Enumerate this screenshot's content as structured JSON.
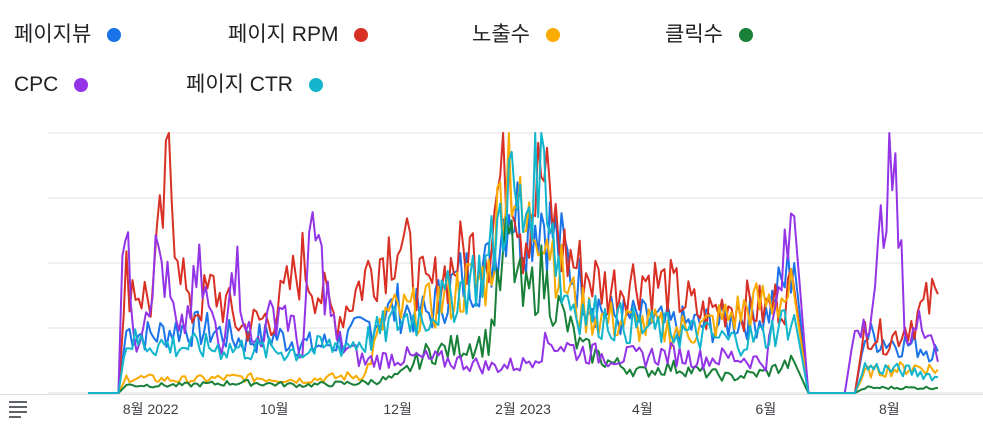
{
  "legend": [
    {
      "label": "페이지뷰",
      "color": "#1a73e8"
    },
    {
      "label": "페이지 RPM",
      "color": "#d93025"
    },
    {
      "label": "노출수",
      "color": "#f9ab00"
    },
    {
      "label": "클릭수",
      "color": "#188038"
    },
    {
      "label": "CPC",
      "color": "#9334e6"
    },
    {
      "label": "페이지 CTR",
      "color": "#12b5cb"
    }
  ],
  "toolbar": {
    "menu_icon": "menu-lines-icon"
  },
  "chart_data": {
    "type": "line",
    "title": "",
    "xlabel": "",
    "ylabel": "",
    "grid": true,
    "legend_position": "top",
    "x_range": [
      "2022-07-01",
      "2023-08-31"
    ],
    "x_ticks": [
      {
        "label": "8월 2022",
        "date": "2022-08-01"
      },
      {
        "label": "10월",
        "date": "2022-10-01"
      },
      {
        "label": "12월",
        "date": "2022-12-01"
      },
      {
        "label": "2월 2023",
        "date": "2023-02-01"
      },
      {
        "label": "4월",
        "date": "2023-04-01"
      },
      {
        "label": "6월",
        "date": "2023-06-01"
      },
      {
        "label": "8월",
        "date": "2023-08-01"
      }
    ],
    "y_range": [
      0,
      100
    ],
    "y_axis_labels_shown": false,
    "series": [
      {
        "name": "페이지뷰",
        "color": "#1a73e8",
        "values": [
          {
            "x": "2022-07-01",
            "y": 0
          },
          {
            "x": "2022-07-16",
            "y": 0
          },
          {
            "x": "2022-07-20",
            "y": 24
          },
          {
            "x": "2022-08-01",
            "y": 22
          },
          {
            "x": "2022-08-15",
            "y": 25
          },
          {
            "x": "2022-09-01",
            "y": 24
          },
          {
            "x": "2022-09-15",
            "y": 20
          },
          {
            "x": "2022-10-01",
            "y": 22
          },
          {
            "x": "2022-10-20",
            "y": 18
          },
          {
            "x": "2022-11-05",
            "y": 20
          },
          {
            "x": "2022-11-20",
            "y": 28
          },
          {
            "x": "2022-12-01",
            "y": 33
          },
          {
            "x": "2022-12-15",
            "y": 30
          },
          {
            "x": "2023-01-01",
            "y": 44
          },
          {
            "x": "2023-01-15",
            "y": 48
          },
          {
            "x": "2023-01-25",
            "y": 75
          },
          {
            "x": "2023-02-01",
            "y": 65
          },
          {
            "x": "2023-02-10",
            "y": 70
          },
          {
            "x": "2023-02-20",
            "y": 55
          },
          {
            "x": "2023-03-01",
            "y": 42
          },
          {
            "x": "2023-03-15",
            "y": 30
          },
          {
            "x": "2023-04-01",
            "y": 28
          },
          {
            "x": "2023-04-15",
            "y": 26
          },
          {
            "x": "2023-05-01",
            "y": 26
          },
          {
            "x": "2023-05-15",
            "y": 28
          },
          {
            "x": "2023-06-01",
            "y": 30
          },
          {
            "x": "2023-06-15",
            "y": 50
          },
          {
            "x": "2023-06-22",
            "y": 0
          },
          {
            "x": "2023-07-15",
            "y": 0
          },
          {
            "x": "2023-07-20",
            "y": 22
          },
          {
            "x": "2023-08-01",
            "y": 20
          },
          {
            "x": "2023-08-15",
            "y": 18
          },
          {
            "x": "2023-08-25",
            "y": 16
          }
        ]
      },
      {
        "name": "페이지 RPM",
        "color": "#d93025",
        "values": [
          {
            "x": "2022-07-01",
            "y": 0
          },
          {
            "x": "2022-07-16",
            "y": 0
          },
          {
            "x": "2022-07-20",
            "y": 45
          },
          {
            "x": "2022-08-01",
            "y": 35
          },
          {
            "x": "2022-08-10",
            "y": 85
          },
          {
            "x": "2022-08-20",
            "y": 30
          },
          {
            "x": "2022-09-01",
            "y": 40
          },
          {
            "x": "2022-09-15",
            "y": 25
          },
          {
            "x": "2022-10-01",
            "y": 30
          },
          {
            "x": "2022-10-15",
            "y": 50
          },
          {
            "x": "2022-11-01",
            "y": 28
          },
          {
            "x": "2022-11-15",
            "y": 45
          },
          {
            "x": "2022-12-01",
            "y": 60
          },
          {
            "x": "2022-12-15",
            "y": 38
          },
          {
            "x": "2023-01-01",
            "y": 52
          },
          {
            "x": "2023-01-15",
            "y": 58
          },
          {
            "x": "2023-01-25",
            "y": 100
          },
          {
            "x": "2023-02-01",
            "y": 60
          },
          {
            "x": "2023-02-10",
            "y": 85
          },
          {
            "x": "2023-02-20",
            "y": 55
          },
          {
            "x": "2023-03-01",
            "y": 48
          },
          {
            "x": "2023-03-15",
            "y": 40
          },
          {
            "x": "2023-04-01",
            "y": 45
          },
          {
            "x": "2023-04-15",
            "y": 40
          },
          {
            "x": "2023-05-01",
            "y": 30
          },
          {
            "x": "2023-05-15",
            "y": 35
          },
          {
            "x": "2023-06-01",
            "y": 32
          },
          {
            "x": "2023-06-15",
            "y": 40
          },
          {
            "x": "2023-06-22",
            "y": 0
          },
          {
            "x": "2023-07-15",
            "y": 0
          },
          {
            "x": "2023-07-20",
            "y": 25
          },
          {
            "x": "2023-08-01",
            "y": 20
          },
          {
            "x": "2023-08-15",
            "y": 30
          },
          {
            "x": "2023-08-25",
            "y": 38
          }
        ]
      },
      {
        "name": "노출수",
        "color": "#f9ab00",
        "values": [
          {
            "x": "2022-07-01",
            "y": 0
          },
          {
            "x": "2022-07-16",
            "y": 0
          },
          {
            "x": "2022-07-20",
            "y": 6
          },
          {
            "x": "2022-08-15",
            "y": 5
          },
          {
            "x": "2022-09-15",
            "y": 6
          },
          {
            "x": "2022-10-15",
            "y": 5
          },
          {
            "x": "2022-11-15",
            "y": 7
          },
          {
            "x": "2022-11-25",
            "y": 30
          },
          {
            "x": "2022-12-15",
            "y": 32
          },
          {
            "x": "2023-01-01",
            "y": 40
          },
          {
            "x": "2023-01-15",
            "y": 45
          },
          {
            "x": "2023-01-25",
            "y": 95
          },
          {
            "x": "2023-02-01",
            "y": 60
          },
          {
            "x": "2023-02-10",
            "y": 70
          },
          {
            "x": "2023-02-20",
            "y": 45
          },
          {
            "x": "2023-03-01",
            "y": 32
          },
          {
            "x": "2023-03-15",
            "y": 28
          },
          {
            "x": "2023-04-01",
            "y": 26
          },
          {
            "x": "2023-04-15",
            "y": 24
          },
          {
            "x": "2023-05-01",
            "y": 25
          },
          {
            "x": "2023-05-15",
            "y": 30
          },
          {
            "x": "2023-06-01",
            "y": 35
          },
          {
            "x": "2023-06-15",
            "y": 38
          },
          {
            "x": "2023-06-22",
            "y": 0
          },
          {
            "x": "2023-07-15",
            "y": 0
          },
          {
            "x": "2023-07-20",
            "y": 8
          },
          {
            "x": "2023-08-15",
            "y": 10
          },
          {
            "x": "2023-08-25",
            "y": 9
          }
        ]
      },
      {
        "name": "클릭수",
        "color": "#188038",
        "values": [
          {
            "x": "2022-07-01",
            "y": 0
          },
          {
            "x": "2022-07-16",
            "y": 0
          },
          {
            "x": "2022-07-20",
            "y": 3
          },
          {
            "x": "2022-08-15",
            "y": 3
          },
          {
            "x": "2022-09-15",
            "y": 4
          },
          {
            "x": "2022-10-15",
            "y": 3
          },
          {
            "x": "2022-11-15",
            "y": 4
          },
          {
            "x": "2022-12-01",
            "y": 6
          },
          {
            "x": "2022-12-15",
            "y": 15
          },
          {
            "x": "2023-01-01",
            "y": 18
          },
          {
            "x": "2023-01-15",
            "y": 20
          },
          {
            "x": "2023-01-25",
            "y": 60
          },
          {
            "x": "2023-02-01",
            "y": 35
          },
          {
            "x": "2023-02-10",
            "y": 45
          },
          {
            "x": "2023-02-20",
            "y": 30
          },
          {
            "x": "2023-03-01",
            "y": 18
          },
          {
            "x": "2023-03-15",
            "y": 12
          },
          {
            "x": "2023-04-01",
            "y": 8
          },
          {
            "x": "2023-04-15",
            "y": 10
          },
          {
            "x": "2023-05-01",
            "y": 8
          },
          {
            "x": "2023-05-15",
            "y": 6
          },
          {
            "x": "2023-06-01",
            "y": 8
          },
          {
            "x": "2023-06-15",
            "y": 12
          },
          {
            "x": "2023-06-22",
            "y": 0
          },
          {
            "x": "2023-07-15",
            "y": 0
          },
          {
            "x": "2023-07-20",
            "y": 2
          },
          {
            "x": "2023-08-15",
            "y": 2
          },
          {
            "x": "2023-08-25",
            "y": 2
          }
        ]
      },
      {
        "name": "CPC",
        "color": "#9334e6",
        "values": [
          {
            "x": "2022-07-01",
            "y": 0
          },
          {
            "x": "2022-07-16",
            "y": 0
          },
          {
            "x": "2022-07-18",
            "y": 67
          },
          {
            "x": "2022-07-25",
            "y": 20
          },
          {
            "x": "2022-08-05",
            "y": 55
          },
          {
            "x": "2022-08-15",
            "y": 20
          },
          {
            "x": "2022-08-25",
            "y": 45
          },
          {
            "x": "2022-09-05",
            "y": 15
          },
          {
            "x": "2022-09-10",
            "y": 57
          },
          {
            "x": "2022-09-20",
            "y": 18
          },
          {
            "x": "2022-10-05",
            "y": 35
          },
          {
            "x": "2022-10-15",
            "y": 15
          },
          {
            "x": "2022-10-20",
            "y": 65
          },
          {
            "x": "2022-11-01",
            "y": 20
          },
          {
            "x": "2022-11-15",
            "y": 12
          },
          {
            "x": "2022-12-01",
            "y": 14
          },
          {
            "x": "2022-12-15",
            "y": 13
          },
          {
            "x": "2023-01-01",
            "y": 12
          },
          {
            "x": "2023-01-15",
            "y": 10
          },
          {
            "x": "2023-02-01",
            "y": 11
          },
          {
            "x": "2023-02-15",
            "y": 20
          },
          {
            "x": "2023-03-01",
            "y": 16
          },
          {
            "x": "2023-03-15",
            "y": 14
          },
          {
            "x": "2023-04-01",
            "y": 14
          },
          {
            "x": "2023-04-15",
            "y": 15
          },
          {
            "x": "2023-05-01",
            "y": 13
          },
          {
            "x": "2023-05-15",
            "y": 14
          },
          {
            "x": "2023-06-01",
            "y": 12
          },
          {
            "x": "2023-06-15",
            "y": 68
          },
          {
            "x": "2023-06-22",
            "y": 0
          },
          {
            "x": "2023-07-10",
            "y": 0
          },
          {
            "x": "2023-07-15",
            "y": 25
          },
          {
            "x": "2023-07-25",
            "y": 35
          },
          {
            "x": "2023-08-01",
            "y": 100
          },
          {
            "x": "2023-08-10",
            "y": 20
          },
          {
            "x": "2023-08-20",
            "y": 30
          },
          {
            "x": "2023-08-25",
            "y": 12
          }
        ]
      },
      {
        "name": "페이지 CTR",
        "color": "#12b5cb",
        "values": [
          {
            "x": "2022-07-01",
            "y": 0
          },
          {
            "x": "2022-07-16",
            "y": 0
          },
          {
            "x": "2022-07-20",
            "y": 20
          },
          {
            "x": "2022-08-15",
            "y": 18
          },
          {
            "x": "2022-09-15",
            "y": 17
          },
          {
            "x": "2022-10-15",
            "y": 16
          },
          {
            "x": "2022-11-15",
            "y": 20
          },
          {
            "x": "2022-12-01",
            "y": 28
          },
          {
            "x": "2022-12-15",
            "y": 30
          },
          {
            "x": "2023-01-01",
            "y": 40
          },
          {
            "x": "2023-01-15",
            "y": 50
          },
          {
            "x": "2023-01-25",
            "y": 80
          },
          {
            "x": "2023-02-01",
            "y": 65
          },
          {
            "x": "2023-02-10",
            "y": 100
          },
          {
            "x": "2023-02-20",
            "y": 40
          },
          {
            "x": "2023-03-01",
            "y": 32
          },
          {
            "x": "2023-03-15",
            "y": 28
          },
          {
            "x": "2023-04-01",
            "y": 25
          },
          {
            "x": "2023-04-15",
            "y": 24
          },
          {
            "x": "2023-05-01",
            "y": 22
          },
          {
            "x": "2023-05-15",
            "y": 20
          },
          {
            "x": "2023-06-01",
            "y": 22
          },
          {
            "x": "2023-06-15",
            "y": 30
          },
          {
            "x": "2023-06-22",
            "y": 0
          },
          {
            "x": "2023-07-15",
            "y": 0
          },
          {
            "x": "2023-07-20",
            "y": 10
          },
          {
            "x": "2023-08-15",
            "y": 8
          },
          {
            "x": "2023-08-25",
            "y": 6
          }
        ]
      }
    ]
  }
}
